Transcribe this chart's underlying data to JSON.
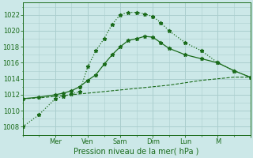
{
  "background_color": "#cce8e8",
  "grid_color": "#aacece",
  "line_color": "#1a6b1a",
  "xlabel": "Pression niveau de la mer( hPa )",
  "ylim": [
    1007.0,
    1023.5
  ],
  "yticks": [
    1008,
    1010,
    1012,
    1014,
    1016,
    1018,
    1020,
    1022
  ],
  "xlim": [
    0,
    14
  ],
  "xtick_positions": [
    2,
    4,
    6,
    8,
    10,
    12,
    14
  ],
  "xtick_labels": [
    "Mer",
    "Ven",
    "Sam",
    "Dim",
    "Lun",
    "M",
    ""
  ],
  "series1_x": [
    0,
    1,
    2,
    2.5,
    3,
    3.5,
    4,
    4.5,
    5,
    5.5,
    6,
    6.5,
    7,
    7.5,
    8,
    8.5,
    9,
    10,
    11,
    12,
    13,
    14
  ],
  "series1_y": [
    1008.0,
    1009.5,
    1011.5,
    1011.8,
    1012.1,
    1012.4,
    1015.5,
    1017.5,
    1019.0,
    1020.8,
    1022.0,
    1022.3,
    1022.3,
    1022.1,
    1021.8,
    1021.0,
    1020.0,
    1018.5,
    1017.5,
    1016.0,
    1015.0,
    1014.2
  ],
  "series2_x": [
    0,
    1,
    2,
    3,
    4,
    5,
    6,
    7,
    8,
    9,
    10,
    11,
    12,
    13,
    14
  ],
  "series2_y": [
    1011.5,
    1011.6,
    1011.8,
    1012.0,
    1012.2,
    1012.4,
    1012.6,
    1012.8,
    1013.0,
    1013.2,
    1013.5,
    1013.8,
    1014.0,
    1014.2,
    1014.2
  ],
  "series3_x": [
    0,
    1,
    2,
    2.5,
    3,
    3.5,
    4,
    4.5,
    5,
    5.5,
    6,
    6.5,
    7,
    7.5,
    8,
    8.5,
    9,
    10,
    11,
    12,
    13,
    14
  ],
  "series3_y": [
    1011.5,
    1011.7,
    1012.0,
    1012.2,
    1012.5,
    1013.0,
    1013.8,
    1014.5,
    1015.8,
    1017.0,
    1018.0,
    1018.8,
    1019.0,
    1019.3,
    1019.2,
    1018.5,
    1017.8,
    1017.0,
    1016.5,
    1016.0,
    1015.0,
    1014.2
  ]
}
